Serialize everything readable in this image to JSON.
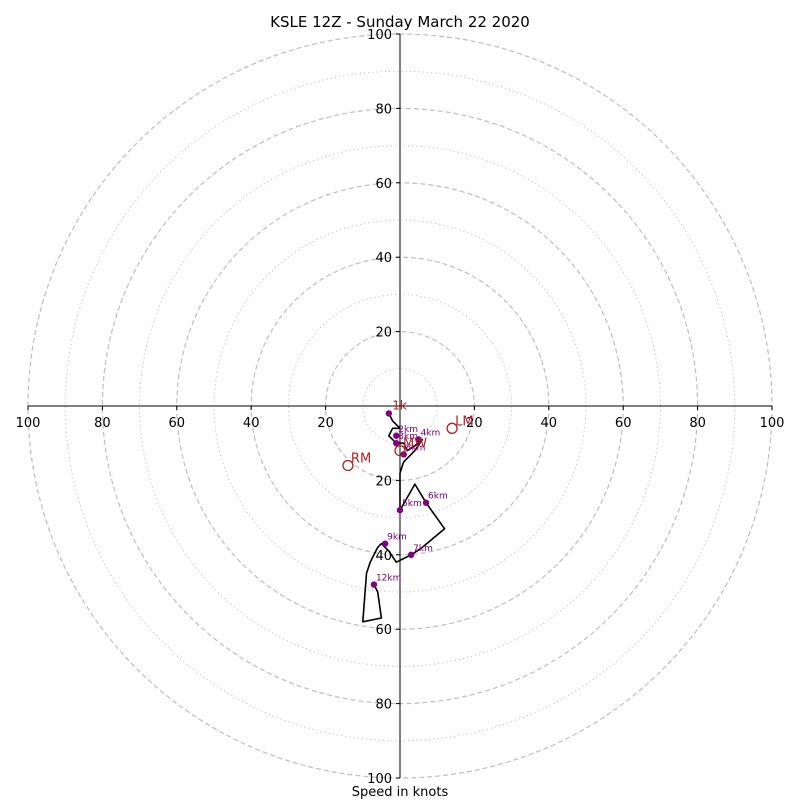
{
  "chart_data": {
    "type": "scatter",
    "subtype": "hodograph",
    "title": "KSLE 12Z - Sunday March 22 2020",
    "xlabel": "Speed in knots",
    "ylabel": "",
    "xlim": [
      -100,
      100
    ],
    "ylim": [
      -100,
      100
    ],
    "ring_major": [
      20,
      40,
      60,
      80,
      100
    ],
    "ring_minor": [
      10,
      30,
      50,
      70,
      90
    ],
    "axis_tick_labels": {
      "x_left": [
        "100",
        "80",
        "60",
        "40",
        "20"
      ],
      "x_right": [
        "20",
        "40",
        "60",
        "80",
        "100"
      ],
      "y_top": [
        "100",
        "80",
        "60",
        "40",
        "20"
      ],
      "y_bottom": [
        "20",
        "40",
        "60",
        "80",
        "100"
      ]
    },
    "hodograph_trace": [
      [
        -3,
        -2
      ],
      [
        -2,
        -4
      ],
      [
        0,
        -6
      ],
      [
        -2,
        -6
      ],
      [
        -3,
        -8
      ],
      [
        -1,
        -10
      ],
      [
        1,
        -10
      ],
      [
        2,
        -12
      ],
      [
        5,
        -10
      ],
      [
        6,
        -9
      ],
      [
        4,
        -12
      ],
      [
        1,
        -15
      ],
      [
        0,
        -18
      ],
      [
        0,
        -22
      ],
      [
        0,
        -28
      ],
      [
        4,
        -21
      ],
      [
        7,
        -26
      ],
      [
        12,
        -33
      ],
      [
        6,
        -38
      ],
      [
        3,
        -40
      ],
      [
        1,
        -41
      ],
      [
        -1,
        -42
      ],
      [
        -3,
        -39
      ],
      [
        -5,
        -37
      ],
      [
        -6,
        -38
      ],
      [
        -8,
        -42
      ],
      [
        -9,
        -45
      ],
      [
        -10,
        -58
      ],
      [
        -5,
        -57
      ],
      [
        -6,
        -50
      ],
      [
        -7,
        -48
      ]
    ],
    "height_markers": [
      {
        "label": "",
        "u": -3,
        "v": -2
      },
      {
        "label": "2km",
        "u": -1,
        "v": -8
      },
      {
        "label": "3km",
        "u": -1,
        "v": -10
      },
      {
        "label": "4km",
        "u": 5,
        "v": -9
      },
      {
        "label": "8km",
        "u": 1,
        "v": -13
      },
      {
        "label": "6km",
        "u": 7,
        "v": -26
      },
      {
        "label": "5km",
        "u": 0,
        "v": -28
      },
      {
        "label": "9km",
        "u": -4,
        "v": -37
      },
      {
        "label": "7km",
        "u": 3,
        "v": -40
      },
      {
        "label": "12km",
        "u": -7,
        "v": -48
      }
    ],
    "storm_motion_markers": [
      {
        "label": "LM",
        "u": 14,
        "v": -6
      },
      {
        "label": "RM",
        "u": -14,
        "v": -16
      },
      {
        "label": "MW",
        "u": 0,
        "v": -12
      }
    ],
    "small_red_labels": [
      {
        "label": "1k",
        "u": -1,
        "v": -1
      }
    ],
    "colors": {
      "trace": "#000000",
      "height_marker": "#800080",
      "storm_marker": "#b22222",
      "grid": "#bfbfbf",
      "axis": "#000000"
    }
  }
}
